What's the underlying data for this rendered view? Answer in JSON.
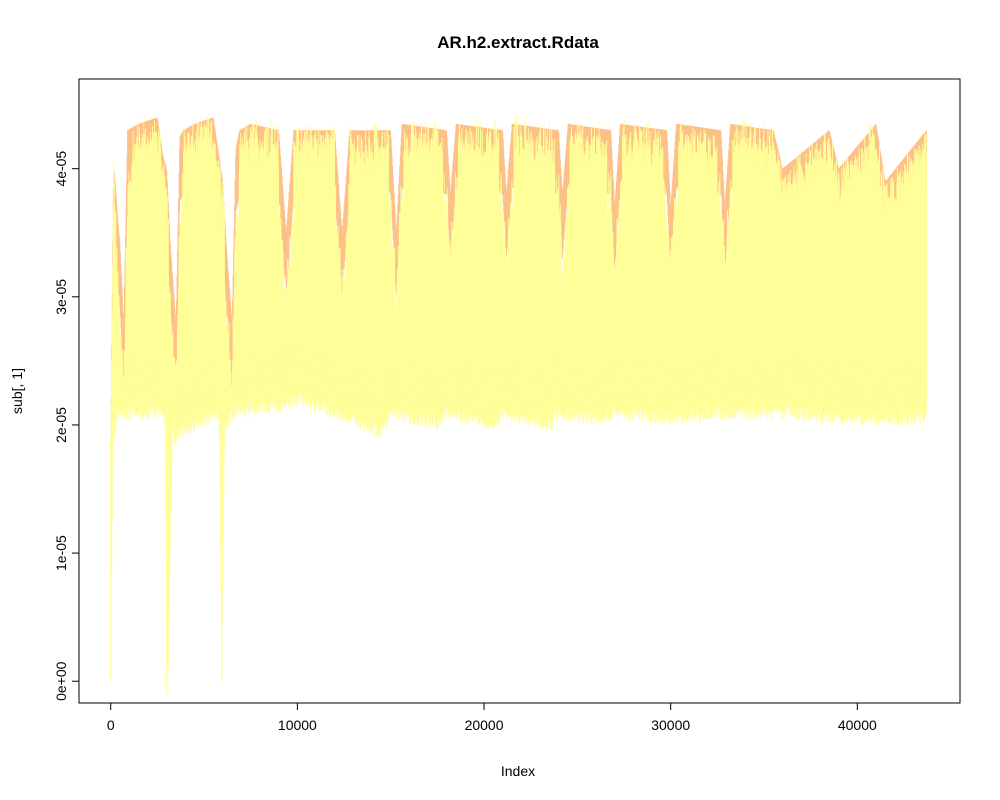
{
  "chart_data": {
    "type": "area",
    "title": "AR.h2.extract.Rdata",
    "xlabel": "Index",
    "ylabel": "sub[, 1]",
    "xlim": [
      -1700,
      45500
    ],
    "ylim": [
      -1.7e-06,
      4.7e-05
    ],
    "x_ticks": [
      0,
      10000,
      20000,
      30000,
      40000
    ],
    "x_tick_labels": [
      "0",
      "10000",
      "20000",
      "30000",
      "40000"
    ],
    "y_ticks": [
      0,
      1e-05,
      2e-05,
      3e-05,
      4e-05
    ],
    "y_tick_labels": [
      "0e+00",
      "1e-05",
      "2e-05",
      "3e-05",
      "4e-05"
    ],
    "grid": false,
    "legend": "none",
    "n_points": 43800,
    "colors": {
      "band": "#ffff99",
      "peak": "#fdc086",
      "background": "#ffffff",
      "axis": "#000000"
    },
    "series": [
      {
        "role": "upper envelope",
        "x": [
          0,
          150,
          500,
          700,
          900,
          1500,
          2500,
          2800,
          3000,
          3200,
          3500,
          3700,
          3900,
          4500,
          5500,
          5800,
          6000,
          6200,
          6500,
          6700,
          6900,
          7500,
          9000,
          9400,
          9800,
          12000,
          12400,
          12800,
          15000,
          15300,
          15600,
          18000,
          18200,
          18500,
          21000,
          21200,
          21500,
          24000,
          24200,
          24500,
          26800,
          27000,
          27300,
          29800,
          30000,
          30300,
          32700,
          32900,
          33200,
          35500,
          36000,
          38500,
          39000,
          41000,
          41500,
          43700
        ],
        "y": [
          1.8e-05,
          4.05e-05,
          3.4e-05,
          2.8e-05,
          4.3e-05,
          4.35e-05,
          4.4e-05,
          4.1e-05,
          4e-05,
          3.4e-05,
          2.8e-05,
          4.25e-05,
          4.3e-05,
          4.35e-05,
          4.4e-05,
          4.1e-05,
          3.9e-05,
          3.4e-05,
          2.8e-05,
          4.15e-05,
          4.3e-05,
          4.35e-05,
          4.3e-05,
          3.5e-05,
          4.3e-05,
          4.3e-05,
          3.5e-05,
          4.3e-05,
          4.3e-05,
          3.5e-05,
          4.35e-05,
          4.3e-05,
          3.8e-05,
          4.35e-05,
          4.3e-05,
          3.8e-05,
          4.35e-05,
          4.3e-05,
          3.8e-05,
          4.35e-05,
          4.3e-05,
          3.7e-05,
          4.35e-05,
          4.3e-05,
          3.7e-05,
          4.35e-05,
          4.3e-05,
          3.7e-05,
          4.35e-05,
          4.3e-05,
          4e-05,
          4.3e-05,
          4e-05,
          4.35e-05,
          3.9e-05,
          4.3e-05
        ]
      },
      {
        "role": "lower envelope",
        "x": [
          0,
          120,
          400,
          2500,
          2900,
          3050,
          3300,
          5800,
          5950,
          6100,
          6400,
          9000,
          10000,
          11000,
          14500,
          15000,
          17500,
          18000,
          20500,
          21000,
          23500,
          24000,
          26000,
          27000,
          30000,
          33000,
          36000,
          40000,
          43700
        ],
        "y": [
          0.0,
          1.8e-05,
          2.1e-05,
          2.1e-05,
          2.05e-05,
          -1e-06,
          1.9e-05,
          2.1e-05,
          0.0,
          1.9e-05,
          2.1e-05,
          2.15e-05,
          2.2e-05,
          2.15e-05,
          1.95e-05,
          2.1e-05,
          2e-05,
          2.1e-05,
          2e-05,
          2.1e-05,
          2e-05,
          2.1e-05,
          2.05e-05,
          2.1e-05,
          2.05e-05,
          2.1e-05,
          2.1e-05,
          2.05e-05,
          2.05e-05
        ]
      }
    ]
  }
}
